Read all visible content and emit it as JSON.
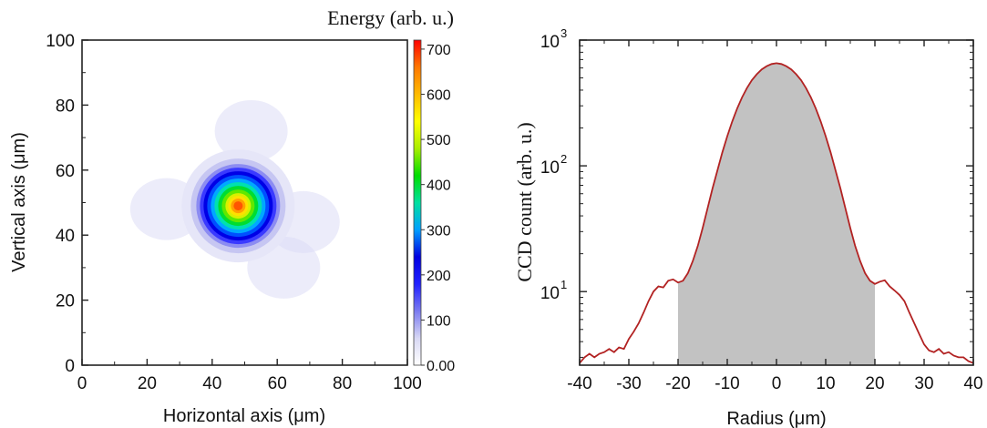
{
  "chart_data": [
    {
      "type": "heatmap",
      "title": "",
      "xlabel": "Horizontal axis (μm)",
      "ylabel": "Vertical axis (μm)",
      "xlim": [
        0,
        100
      ],
      "ylim": [
        0,
        100
      ],
      "x_ticks": [
        "0",
        "20",
        "40",
        "60",
        "80",
        "100"
      ],
      "y_ticks": [
        "0",
        "20",
        "40",
        "60",
        "80",
        "100"
      ],
      "colorbar": {
        "label": "Energy (arb. u.)",
        "range": [
          0,
          720
        ],
        "ticks": [
          "0.00",
          "100",
          "200",
          "300",
          "400",
          "500",
          "600",
          "700"
        ],
        "colors": [
          "#ffffff",
          "#d8d8f4",
          "#7a7af0",
          "#2020ff",
          "#0000e0",
          "#00a0ff",
          "#00e0a0",
          "#00dd00",
          "#aaee00",
          "#ffff00",
          "#ffbb00",
          "#ff7700",
          "#ff0000"
        ]
      },
      "peak": {
        "x": 48,
        "y": 49,
        "energy": 710
      },
      "halo_lobes": [
        {
          "x": 26,
          "y": 48
        },
        {
          "x": 68,
          "y": 44
        },
        {
          "x": 52,
          "y": 72
        },
        {
          "x": 62,
          "y": 30
        }
      ],
      "grid": false
    },
    {
      "type": "line",
      "title": "",
      "xlabel": "Radius (μm)",
      "ylabel": "CCD count (arb. u.)",
      "xlim": [
        -40,
        40
      ],
      "ylim": [
        2.6,
        1000
      ],
      "yscale": "log",
      "x_ticks": [
        "-40",
        "-30",
        "-20",
        "-10",
        "0",
        "10",
        "20",
        "30",
        "40"
      ],
      "y_ticks": [
        {
          "base": "10",
          "exp": "1",
          "value": 10
        },
        {
          "base": "10",
          "exp": "2",
          "value": 100
        },
        {
          "base": "10",
          "exp": "3",
          "value": 1000
        }
      ],
      "line_color": "#b22222",
      "fill_color": "#c2c2c2",
      "fill_range": [
        -20,
        20
      ],
      "series": [
        {
          "x": [
            -40,
            -39,
            -38,
            -37,
            -36,
            -35,
            -34,
            -33,
            -32,
            -31,
            -30,
            -29,
            -28,
            -27,
            -26,
            -25,
            -24,
            -23,
            -22,
            -21,
            -20,
            -19,
            -18,
            -17,
            -16,
            -15,
            -14,
            -13,
            -12,
            -11,
            -10,
            -9,
            -8,
            -7,
            -6,
            -5,
            -4,
            -3,
            -2,
            -1,
            0,
            1,
            2,
            3,
            4,
            5,
            6,
            7,
            8,
            9,
            10,
            11,
            12,
            13,
            14,
            15,
            16,
            17,
            18,
            19,
            20,
            21,
            22,
            23,
            24,
            25,
            26,
            27,
            28,
            29,
            30,
            31,
            32,
            33,
            34,
            35,
            36,
            37,
            38,
            39,
            40
          ],
          "values": [
            2.7,
            3.0,
            3.2,
            3.0,
            3.2,
            3.3,
            3.5,
            3.3,
            3.6,
            3.5,
            4.2,
            4.8,
            5.6,
            6.8,
            8.4,
            10.0,
            11.0,
            10.8,
            12.2,
            12.5,
            11.8,
            12.2,
            14.0,
            17.5,
            23.0,
            32.0,
            46.0,
            66.0,
            92.0,
            128.0,
            172.0,
            225.0,
            285.0,
            350.0,
            415.0,
            480.0,
            535.0,
            585.0,
            620.0,
            645.0,
            655.0,
            645.0,
            620.0,
            585.0,
            535.0,
            480.0,
            415.0,
            350.0,
            285.0,
            225.0,
            172.0,
            128.0,
            92.0,
            66.0,
            46.0,
            32.0,
            23.0,
            17.5,
            14.0,
            12.2,
            11.5,
            12.0,
            12.3,
            11.0,
            10.2,
            9.4,
            8.4,
            6.8,
            5.6,
            4.6,
            3.8,
            3.4,
            3.3,
            3.5,
            3.2,
            3.3,
            3.1,
            3.0,
            3.0,
            2.8,
            2.7
          ]
        }
      ],
      "grid": false
    }
  ]
}
